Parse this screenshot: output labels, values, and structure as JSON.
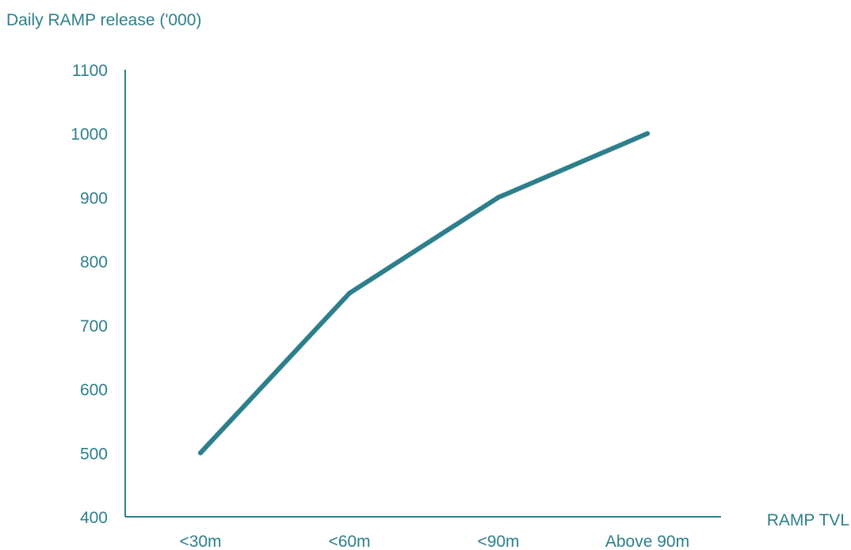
{
  "chart_data": {
    "type": "line",
    "title": "",
    "ylabel": "Daily RAMP release ('000)",
    "xlabel": "RAMP TVL",
    "categories": [
      "<30m",
      "<60m",
      "<90m",
      "Above 90m"
    ],
    "series": [
      {
        "values": [
          500,
          750,
          900,
          1000
        ]
      }
    ],
    "ylim": [
      400,
      1100
    ],
    "yticks": [
      "400",
      "500",
      "600",
      "700",
      "800",
      "900",
      "1000",
      "1100"
    ],
    "grid": false,
    "legend": "none",
    "colors": {
      "line": "#2e7f8c",
      "axis": "#2e7f8c",
      "text": "#2e7f8c"
    }
  }
}
